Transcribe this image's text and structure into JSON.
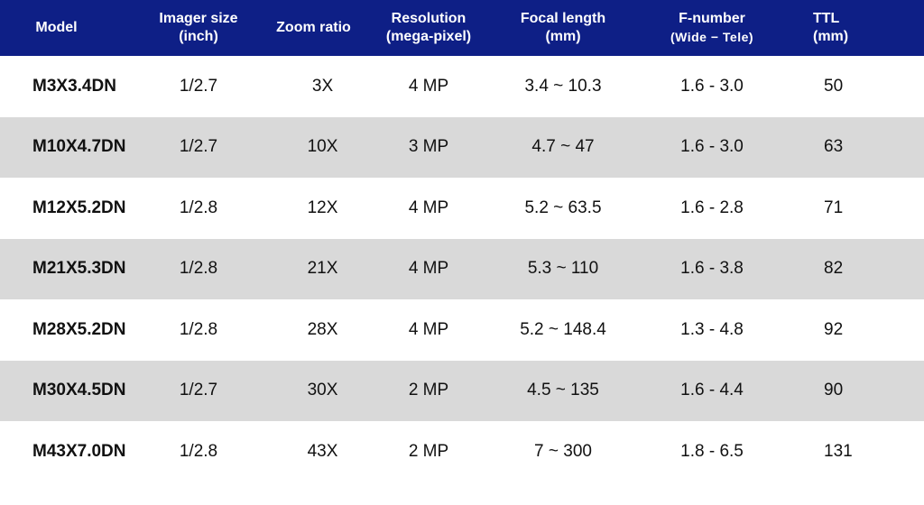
{
  "table": {
    "headers": [
      {
        "line1": "Model",
        "line2": ""
      },
      {
        "line1": "Imager size",
        "line2": "(inch)"
      },
      {
        "line1": "Zoom ratio",
        "line2": ""
      },
      {
        "line1": "Resolution",
        "line2": "(mega-pixel)"
      },
      {
        "line1": "Focal length",
        "line2": "(mm)"
      },
      {
        "line1": "F-number",
        "line2": "(Wide − Tele)"
      },
      {
        "line1": "TTL",
        "line2": "(mm)"
      }
    ],
    "rows": [
      [
        "M3X3.4DN",
        "1/2.7",
        "3X",
        "4 MP",
        "3.4 ~ 10.3",
        "1.6 - 3.0",
        "50"
      ],
      [
        "M10X4.7DN",
        "1/2.7",
        "10X",
        "3 MP",
        "4.7 ~ 47",
        "1.6 - 3.0",
        "63"
      ],
      [
        "M12X5.2DN",
        "1/2.8",
        "12X",
        "4 MP",
        "5.2 ~ 63.5",
        "1.6 - 2.8",
        "71"
      ],
      [
        "M21X5.3DN",
        "1/2.8",
        "21X",
        "4 MP",
        "5.3 ~ 110",
        "1.6 - 3.8",
        "82"
      ],
      [
        "M28X5.2DN",
        "1/2.8",
        "28X",
        "4 MP",
        "5.2 ~ 148.4",
        "1.3 - 4.8",
        "92"
      ],
      [
        "M30X4.5DN",
        "1/2.7",
        "30X",
        "2 MP",
        "4.5 ~ 135",
        "1.6 - 4.4",
        "90"
      ],
      [
        "M43X7.0DN",
        "1/2.8",
        "43X",
        "2 MP",
        "7 ~ 300",
        "1.8 - 6.5",
        "131"
      ]
    ]
  },
  "colors": {
    "header_bg": "#0e1f86",
    "header_text": "#ffffff",
    "stripe": "#d9d9d9",
    "row_bg": "#ffffff"
  }
}
